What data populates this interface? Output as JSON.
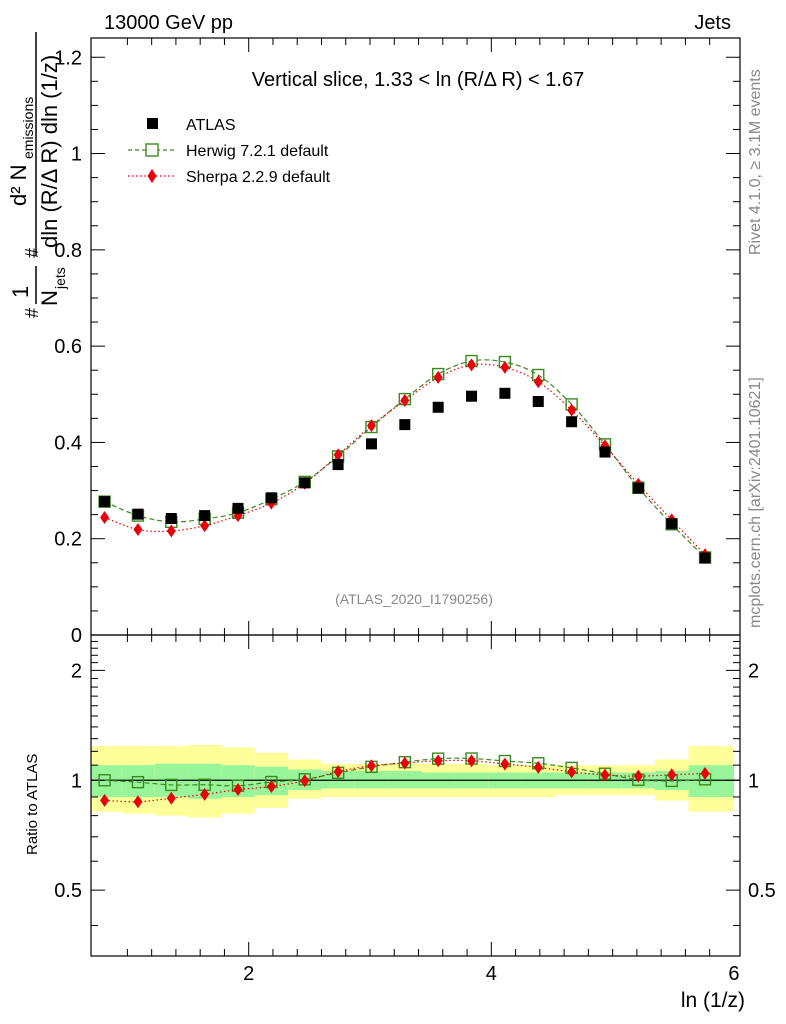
{
  "header": {
    "energy_label": "13000 GeV pp",
    "process_label": "Jets"
  },
  "side": {
    "rivet_label": "Rivet 4.1.0, ≥ 3.1M events",
    "source_label": "mcplots.cern.ch [arXiv:2401.10621]"
  },
  "chart_data": [
    {
      "type": "scatter",
      "title": "Vertical slice, 1.33 < ln (R/Δ R) < 1.67",
      "xlabel": "ln (1/z)",
      "ylabel_main": "1/N_jets d²N_emissions / dln(R/ΔR) dln(1/z)",
      "ylabel_parts": {
        "frac1_num": "1",
        "frac1_den": "N",
        "frac1_den_sub": "jets",
        "frac2_num": "d² N",
        "frac2_num_sub": "emissions",
        "frac2_den": "dln (R/Δ R) dln (1/z)",
        "hash": "#"
      },
      "analysis_id": "(ATLAS_2020_I1790256)",
      "xlim": [
        0.7,
        6.05
      ],
      "ylim": [
        0,
        1.24
      ],
      "yticks": [
        0,
        0.2,
        0.4,
        0.6,
        0.8,
        1,
        1.2
      ],
      "yticklabels": [
        "0",
        "0.2",
        "0.4",
        "0.6",
        "0.8",
        "1",
        "1.2"
      ],
      "xticks": [
        2,
        4,
        6
      ],
      "xticklabels": [
        "2",
        "4",
        "6"
      ],
      "legend_position": "top-left",
      "x": [
        0.812,
        1.087,
        1.362,
        1.637,
        1.912,
        2.187,
        2.462,
        2.737,
        3.012,
        3.287,
        3.562,
        3.837,
        4.112,
        4.387,
        4.662,
        4.937,
        5.212,
        5.487,
        5.762
      ],
      "series": [
        {
          "name": "ATLAS",
          "marker": "filled-square",
          "color": "#000000",
          "values": [
            0.277,
            0.251,
            0.242,
            0.248,
            0.263,
            0.285,
            0.316,
            0.354,
            0.397,
            0.437,
            0.473,
            0.496,
            0.502,
            0.485,
            0.443,
            0.38,
            0.305,
            0.231,
            0.16
          ]
        },
        {
          "name": "Herwig 7.2.1 default",
          "marker": "open-square",
          "line": "dashed",
          "color": "#3a8a1f",
          "values": [
            0.277,
            0.248,
            0.235,
            0.241,
            0.254,
            0.282,
            0.318,
            0.371,
            0.432,
            0.49,
            0.542,
            0.569,
            0.567,
            0.54,
            0.479,
            0.396,
            0.306,
            0.23,
            0.161
          ]
        },
        {
          "name": "Sherpa 2.2.9 default",
          "marker": "filled-diamond",
          "line": "dotted",
          "color": "#e8000b",
          "values": [
            0.244,
            0.219,
            0.216,
            0.227,
            0.248,
            0.274,
            0.315,
            0.374,
            0.435,
            0.487,
            0.535,
            0.561,
            0.556,
            0.526,
            0.467,
            0.393,
            0.313,
            0.239,
            0.167
          ]
        }
      ]
    },
    {
      "type": "scatter",
      "title": "",
      "xlabel": "ln (1/z)",
      "ylabel": "Ratio to ATLAS",
      "xlim": [
        0.7,
        6.05
      ],
      "ylim": [
        0.33,
        2.5
      ],
      "yticks": [
        0.5,
        1,
        2
      ],
      "yticklabels": [
        "0.5",
        "1",
        "2"
      ],
      "xticks": [
        2,
        4,
        6
      ],
      "xticklabels": [
        "2",
        "4",
        "6"
      ],
      "x": [
        0.812,
        1.087,
        1.362,
        1.637,
        1.912,
        2.187,
        2.462,
        2.737,
        3.012,
        3.287,
        3.562,
        3.837,
        4.112,
        4.387,
        4.662,
        4.937,
        5.212,
        5.487,
        5.762
      ],
      "bin_edges": [
        0.7,
        0.95,
        1.225,
        1.5,
        1.775,
        2.05,
        2.325,
        2.6,
        2.875,
        3.15,
        3.425,
        3.7,
        3.975,
        4.25,
        4.525,
        4.8,
        5.075,
        5.35,
        5.625,
        6.0
      ],
      "band_stat": {
        "lo": [
          0.9,
          0.9,
          0.9,
          0.89,
          0.9,
          0.91,
          0.94,
          0.95,
          0.95,
          0.95,
          0.95,
          0.95,
          0.95,
          0.95,
          0.95,
          0.95,
          0.95,
          0.94,
          0.9
        ],
        "hi": [
          1.1,
          1.1,
          1.11,
          1.11,
          1.1,
          1.09,
          1.07,
          1.06,
          1.06,
          1.06,
          1.05,
          1.05,
          1.05,
          1.05,
          1.05,
          1.05,
          1.05,
          1.06,
          1.1
        ]
      },
      "band_total": {
        "lo": [
          0.82,
          0.81,
          0.8,
          0.79,
          0.81,
          0.84,
          0.89,
          0.9,
          0.9,
          0.9,
          0.9,
          0.9,
          0.9,
          0.9,
          0.91,
          0.91,
          0.91,
          0.88,
          0.82
        ],
        "hi": [
          1.24,
          1.24,
          1.24,
          1.25,
          1.23,
          1.19,
          1.14,
          1.11,
          1.11,
          1.11,
          1.11,
          1.11,
          1.1,
          1.1,
          1.1,
          1.1,
          1.1,
          1.14,
          1.24
        ]
      },
      "band_colors": {
        "stat": "#99f599",
        "total": "#ffff99"
      },
      "series": [
        {
          "name": "Herwig 7.2.1 default",
          "marker": "open-square",
          "line": "dashed",
          "color": "#3a8a1f",
          "values": [
            1.0,
            0.988,
            0.971,
            0.972,
            0.966,
            0.989,
            1.006,
            1.048,
            1.088,
            1.121,
            1.146,
            1.147,
            1.129,
            1.113,
            1.081,
            1.042,
            1.003,
            0.996,
            1.006
          ]
        },
        {
          "name": "Sherpa 2.2.9 default",
          "marker": "filled-diamond",
          "line": "dotted",
          "color": "#e8000b",
          "values": [
            0.881,
            0.873,
            0.893,
            0.915,
            0.943,
            0.961,
            0.997,
            1.056,
            1.096,
            1.114,
            1.131,
            1.131,
            1.108,
            1.085,
            1.054,
            1.034,
            1.026,
            1.035,
            1.044
          ]
        }
      ]
    }
  ]
}
